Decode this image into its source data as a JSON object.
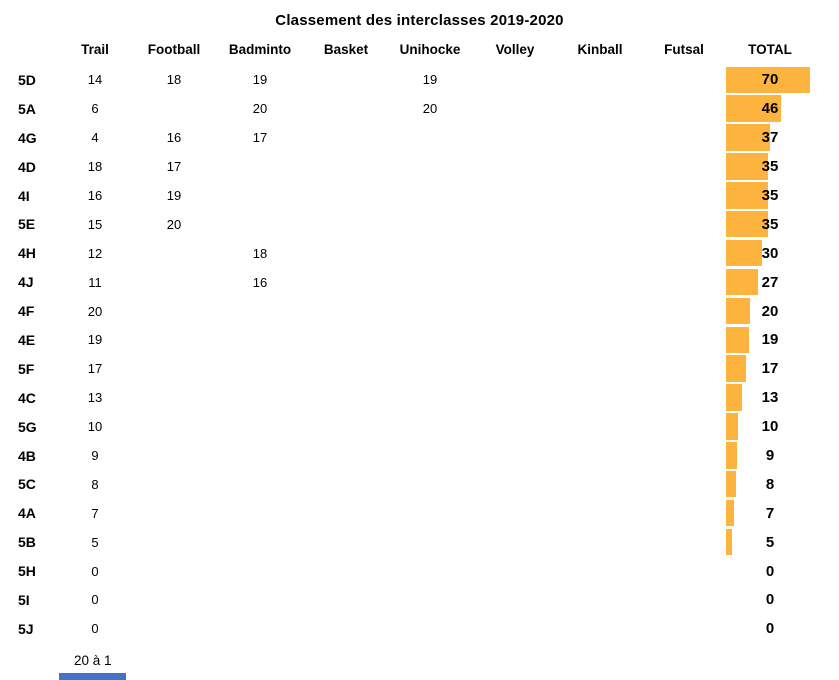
{
  "title": "Classement des interclasses 2019-2020",
  "columns": {
    "trail": "Trail",
    "football": "Football",
    "badminton": "Badminto",
    "basket": "Basket",
    "unihockey": "Unihocke",
    "volley": "Volley",
    "kinball": "Kinball",
    "futsal": "Futsal",
    "total": "TOTAL"
  },
  "rows": [
    {
      "label": "5D",
      "values": [
        14,
        18,
        19,
        null,
        19,
        null,
        null,
        null
      ],
      "total": 70
    },
    {
      "label": "5A",
      "values": [
        6,
        null,
        20,
        null,
        20,
        null,
        null,
        null
      ],
      "total": 46
    },
    {
      "label": "4G",
      "values": [
        4,
        16,
        17,
        null,
        null,
        null,
        null,
        null
      ],
      "total": 37
    },
    {
      "label": "4D",
      "values": [
        18,
        17,
        null,
        null,
        null,
        null,
        null,
        null
      ],
      "total": 35
    },
    {
      "label": "4I",
      "values": [
        16,
        19,
        null,
        null,
        null,
        null,
        null,
        null
      ],
      "total": 35
    },
    {
      "label": "5E",
      "values": [
        15,
        20,
        null,
        null,
        null,
        null,
        null,
        null
      ],
      "total": 35
    },
    {
      "label": "4H",
      "values": [
        12,
        null,
        18,
        null,
        null,
        null,
        null,
        null
      ],
      "total": 30
    },
    {
      "label": "4J",
      "values": [
        11,
        null,
        16,
        null,
        null,
        null,
        null,
        null
      ],
      "total": 27
    },
    {
      "label": "4F",
      "values": [
        20,
        null,
        null,
        null,
        null,
        null,
        null,
        null
      ],
      "total": 20
    },
    {
      "label": "4E",
      "values": [
        19,
        null,
        null,
        null,
        null,
        null,
        null,
        null
      ],
      "total": 19
    },
    {
      "label": "5F",
      "values": [
        17,
        null,
        null,
        null,
        null,
        null,
        null,
        null
      ],
      "total": 17
    },
    {
      "label": "4C",
      "values": [
        13,
        null,
        null,
        null,
        null,
        null,
        null,
        null
      ],
      "total": 13
    },
    {
      "label": "5G",
      "values": [
        10,
        null,
        null,
        null,
        null,
        null,
        null,
        null
      ],
      "total": 10
    },
    {
      "label": "4B",
      "values": [
        9,
        null,
        null,
        null,
        null,
        null,
        null,
        null
      ],
      "total": 9
    },
    {
      "label": "5C",
      "values": [
        8,
        null,
        null,
        null,
        null,
        null,
        null,
        null
      ],
      "total": 8
    },
    {
      "label": "4A",
      "values": [
        7,
        null,
        null,
        null,
        null,
        null,
        null,
        null
      ],
      "total": 7
    },
    {
      "label": "5B",
      "values": [
        5,
        null,
        null,
        null,
        null,
        null,
        null,
        null
      ],
      "total": 5
    },
    {
      "label": "5H",
      "values": [
        0,
        null,
        null,
        null,
        null,
        null,
        null,
        null
      ],
      "total": 0
    },
    {
      "label": "5I",
      "values": [
        0,
        null,
        null,
        null,
        null,
        null,
        null,
        null
      ],
      "total": 0
    },
    {
      "label": "5J",
      "values": [
        0,
        null,
        null,
        null,
        null,
        null,
        null,
        null
      ],
      "total": 0
    }
  ],
  "footnote": "20 à 1",
  "colors": {
    "bar": "#FCB43E",
    "text": "#000000",
    "scrollbar_thumb": "#4472C4"
  },
  "chart_data": {
    "type": "bar",
    "orientation": "horizontal",
    "title": "Classement des interclasses 2019-2020",
    "categories": [
      "5D",
      "5A",
      "4G",
      "4D",
      "4I",
      "5E",
      "4H",
      "4J",
      "4F",
      "4E",
      "5F",
      "4C",
      "5G",
      "4B",
      "5C",
      "4A",
      "5B",
      "5H",
      "5I",
      "5J"
    ],
    "series": [
      {
        "name": "Trail",
        "values": [
          14,
          6,
          4,
          18,
          16,
          15,
          12,
          11,
          20,
          19,
          17,
          13,
          10,
          9,
          8,
          7,
          5,
          0,
          0,
          0
        ]
      },
      {
        "name": "Football",
        "values": [
          18,
          null,
          16,
          17,
          19,
          20,
          null,
          null,
          null,
          null,
          null,
          null,
          null,
          null,
          null,
          null,
          null,
          null,
          null,
          null
        ]
      },
      {
        "name": "Badminto",
        "values": [
          19,
          20,
          17,
          null,
          null,
          null,
          18,
          16,
          null,
          null,
          null,
          null,
          null,
          null,
          null,
          null,
          null,
          null,
          null,
          null
        ]
      },
      {
        "name": "Basket",
        "values": [
          null,
          null,
          null,
          null,
          null,
          null,
          null,
          null,
          null,
          null,
          null,
          null,
          null,
          null,
          null,
          null,
          null,
          null,
          null,
          null
        ]
      },
      {
        "name": "Unihocke",
        "values": [
          19,
          20,
          null,
          null,
          null,
          null,
          null,
          null,
          null,
          null,
          null,
          null,
          null,
          null,
          null,
          null,
          null,
          null,
          null,
          null
        ]
      },
      {
        "name": "Volley",
        "values": [
          null,
          null,
          null,
          null,
          null,
          null,
          null,
          null,
          null,
          null,
          null,
          null,
          null,
          null,
          null,
          null,
          null,
          null,
          null,
          null
        ]
      },
      {
        "name": "Kinball",
        "values": [
          null,
          null,
          null,
          null,
          null,
          null,
          null,
          null,
          null,
          null,
          null,
          null,
          null,
          null,
          null,
          null,
          null,
          null,
          null,
          null
        ]
      },
      {
        "name": "Futsal",
        "values": [
          null,
          null,
          null,
          null,
          null,
          null,
          null,
          null,
          null,
          null,
          null,
          null,
          null,
          null,
          null,
          null,
          null,
          null,
          null,
          null
        ]
      }
    ],
    "totals": {
      "name": "TOTAL",
      "values": [
        70,
        46,
        37,
        35,
        35,
        35,
        30,
        27,
        20,
        19,
        17,
        13,
        10,
        9,
        8,
        7,
        5,
        0,
        0,
        0
      ]
    },
    "bar_color": "#FCB43E",
    "xlim": [
      0,
      70
    ],
    "grid": false,
    "legend": false,
    "annotation": "20 à 1"
  }
}
